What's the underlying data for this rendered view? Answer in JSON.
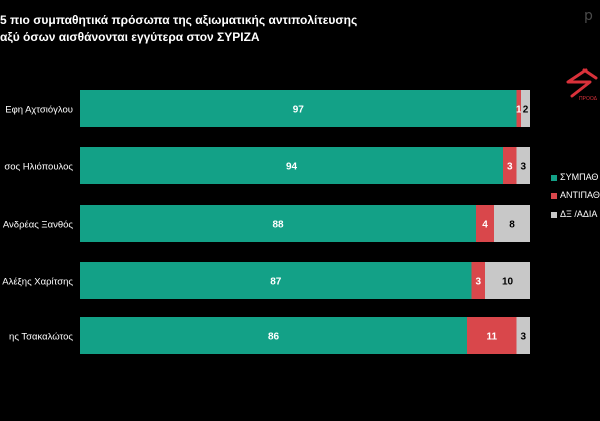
{
  "title_lines": [
    "5 πιο συμπαθητικά πρόσωπα της αξιωματικής αντιπολίτευσης",
    "αξύ όσων αισθάνονται εγγύτερα στον ΣΥΡΙΖΑ"
  ],
  "brand_corner": "p",
  "logo": {
    "caption": "ΠΡΟΟΔ"
  },
  "colors": {
    "background": "#000000",
    "sympathy": "#13a187",
    "antipathy": "#d9474b",
    "dk": "#c8c8c8",
    "text": "#ffffff",
    "logo_red": "#d9313a"
  },
  "chart_data": {
    "type": "bar",
    "orientation": "horizontal",
    "stacked": true,
    "categories": [
      "Εφη Αχτσιόγλου",
      "σος Ηλιόπουλος",
      "Ανδρέας Ξανθός",
      "Αλέξης Χαρίτσης",
      "ης Τσακαλώτος"
    ],
    "series": [
      {
        "name": "ΣΥΜΠΑΘ",
        "color": "#13a187",
        "values": [
          97,
          94,
          88,
          87,
          86
        ]
      },
      {
        "name": "ΑΝΤΙΠΑΘ",
        "color": "#d9474b",
        "values": [
          1,
          3,
          4,
          3,
          11
        ]
      },
      {
        "name": "ΔΞ /ΑΔΙΑ",
        "color": "#c8c8c8",
        "values": [
          2,
          3,
          8,
          10,
          3
        ]
      }
    ],
    "data_labels": true,
    "legend_position": "right",
    "grid": false,
    "xlim": [
      0,
      100
    ]
  }
}
